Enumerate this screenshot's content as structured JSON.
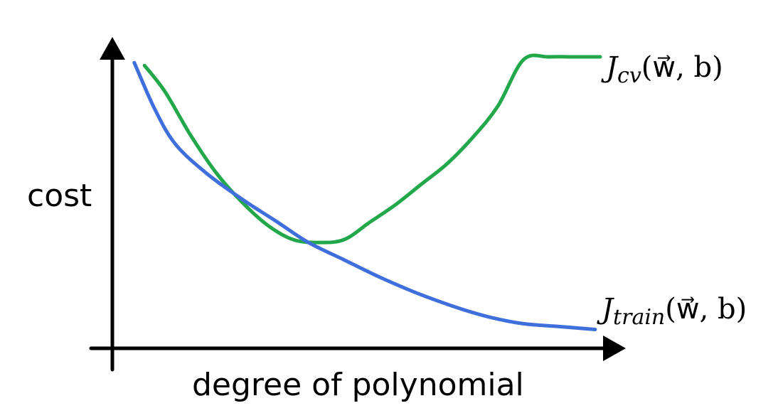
{
  "chart_data": {
    "type": "line",
    "title": "",
    "xlabel": "degree of polynomial",
    "ylabel": "cost",
    "xlim": [
      0,
      1
    ],
    "ylim": [
      0,
      1
    ],
    "grid": false,
    "series": [
      {
        "name": "J_cv(w,b)",
        "label_main": "J",
        "label_sub": "cv",
        "label_args": "(w⃗, b)",
        "color": "#22a84a",
        "x": [
          0.06,
          0.1,
          0.15,
          0.2,
          0.25,
          0.3,
          0.35,
          0.4,
          0.45,
          0.5,
          0.55,
          0.6,
          0.65,
          0.7,
          0.75,
          0.8,
          0.85,
          0.9,
          0.95
        ],
        "y": [
          0.97,
          0.88,
          0.73,
          0.6,
          0.5,
          0.42,
          0.37,
          0.36,
          0.37,
          0.43,
          0.49,
          0.56,
          0.63,
          0.72,
          0.83,
          0.99,
          1.0,
          1.0,
          1.0
        ]
      },
      {
        "name": "J_train(w,b)",
        "label_main": "J",
        "label_sub": "train",
        "label_args": "(w⃗, b)",
        "color": "#3f6fdc",
        "x": [
          0.04,
          0.08,
          0.12,
          0.18,
          0.25,
          0.32,
          0.38,
          0.45,
          0.52,
          0.6,
          0.68,
          0.74,
          0.8,
          0.87,
          0.94
        ],
        "y": [
          0.98,
          0.82,
          0.7,
          0.6,
          0.51,
          0.43,
          0.36,
          0.3,
          0.24,
          0.18,
          0.13,
          0.1,
          0.08,
          0.07,
          0.06
        ]
      }
    ]
  }
}
